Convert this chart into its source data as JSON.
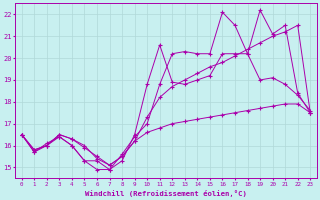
{
  "xlabel": "Windchill (Refroidissement éolien,°C)",
  "bg_color": "#c8f0f0",
  "grid_color": "#b0d8d8",
  "line_color": "#aa00aa",
  "xlim": [
    -0.5,
    23.5
  ],
  "ylim": [
    14.5,
    22.5
  ],
  "xticks": [
    0,
    1,
    2,
    3,
    4,
    5,
    6,
    7,
    8,
    9,
    10,
    11,
    12,
    13,
    14,
    15,
    16,
    17,
    18,
    19,
    20,
    21,
    22,
    23
  ],
  "yticks": [
    15,
    16,
    17,
    18,
    19,
    20,
    21,
    22
  ],
  "series": [
    {
      "x": [
        0,
        1,
        2,
        3,
        4,
        5,
        6,
        7,
        8,
        9,
        10,
        11,
        12,
        13,
        14,
        15,
        16,
        17,
        18,
        19,
        20,
        21,
        22,
        23
      ],
      "y": [
        16.5,
        15.7,
        16.0,
        16.4,
        16.0,
        15.3,
        14.9,
        14.9,
        15.3,
        16.5,
        18.8,
        20.6,
        18.9,
        18.8,
        19.0,
        19.2,
        20.2,
        20.2,
        20.2,
        22.2,
        21.1,
        21.5,
        18.4,
        17.5
      ]
    },
    {
      "x": [
        0,
        1,
        2,
        3,
        4,
        5,
        6,
        7,
        8,
        9,
        10,
        11,
        12,
        13,
        14,
        15,
        16,
        17,
        18,
        19,
        20,
        21,
        22,
        23
      ],
      "y": [
        16.5,
        15.7,
        16.1,
        16.4,
        16.0,
        15.3,
        15.3,
        14.9,
        15.6,
        16.4,
        17.0,
        18.8,
        20.2,
        20.3,
        20.2,
        20.2,
        22.1,
        21.5,
        20.2,
        19.0,
        19.1,
        18.8,
        18.3,
        17.6
      ]
    },
    {
      "x": [
        0,
        1,
        2,
        3,
        4,
        5,
        6,
        7,
        8,
        9,
        10,
        11,
        12,
        13,
        14,
        15,
        16,
        17,
        18,
        19,
        20,
        21,
        22,
        23
      ],
      "y": [
        16.5,
        15.8,
        16.0,
        16.5,
        16.3,
        16.0,
        15.4,
        15.1,
        15.5,
        16.2,
        17.3,
        18.2,
        18.7,
        19.0,
        19.3,
        19.6,
        19.8,
        20.1,
        20.4,
        20.7,
        21.0,
        21.2,
        21.5,
        17.5
      ]
    },
    {
      "x": [
        0,
        1,
        2,
        3,
        4,
        5,
        6,
        7,
        8,
        9,
        10,
        11,
        12,
        13,
        14,
        15,
        16,
        17,
        18,
        19,
        20,
        21,
        22,
        23
      ],
      "y": [
        16.5,
        15.8,
        16.0,
        16.5,
        16.3,
        15.9,
        15.5,
        15.1,
        15.5,
        16.2,
        16.6,
        16.8,
        17.0,
        17.1,
        17.2,
        17.3,
        17.4,
        17.5,
        17.6,
        17.7,
        17.8,
        17.9,
        17.9,
        17.5
      ]
    }
  ]
}
